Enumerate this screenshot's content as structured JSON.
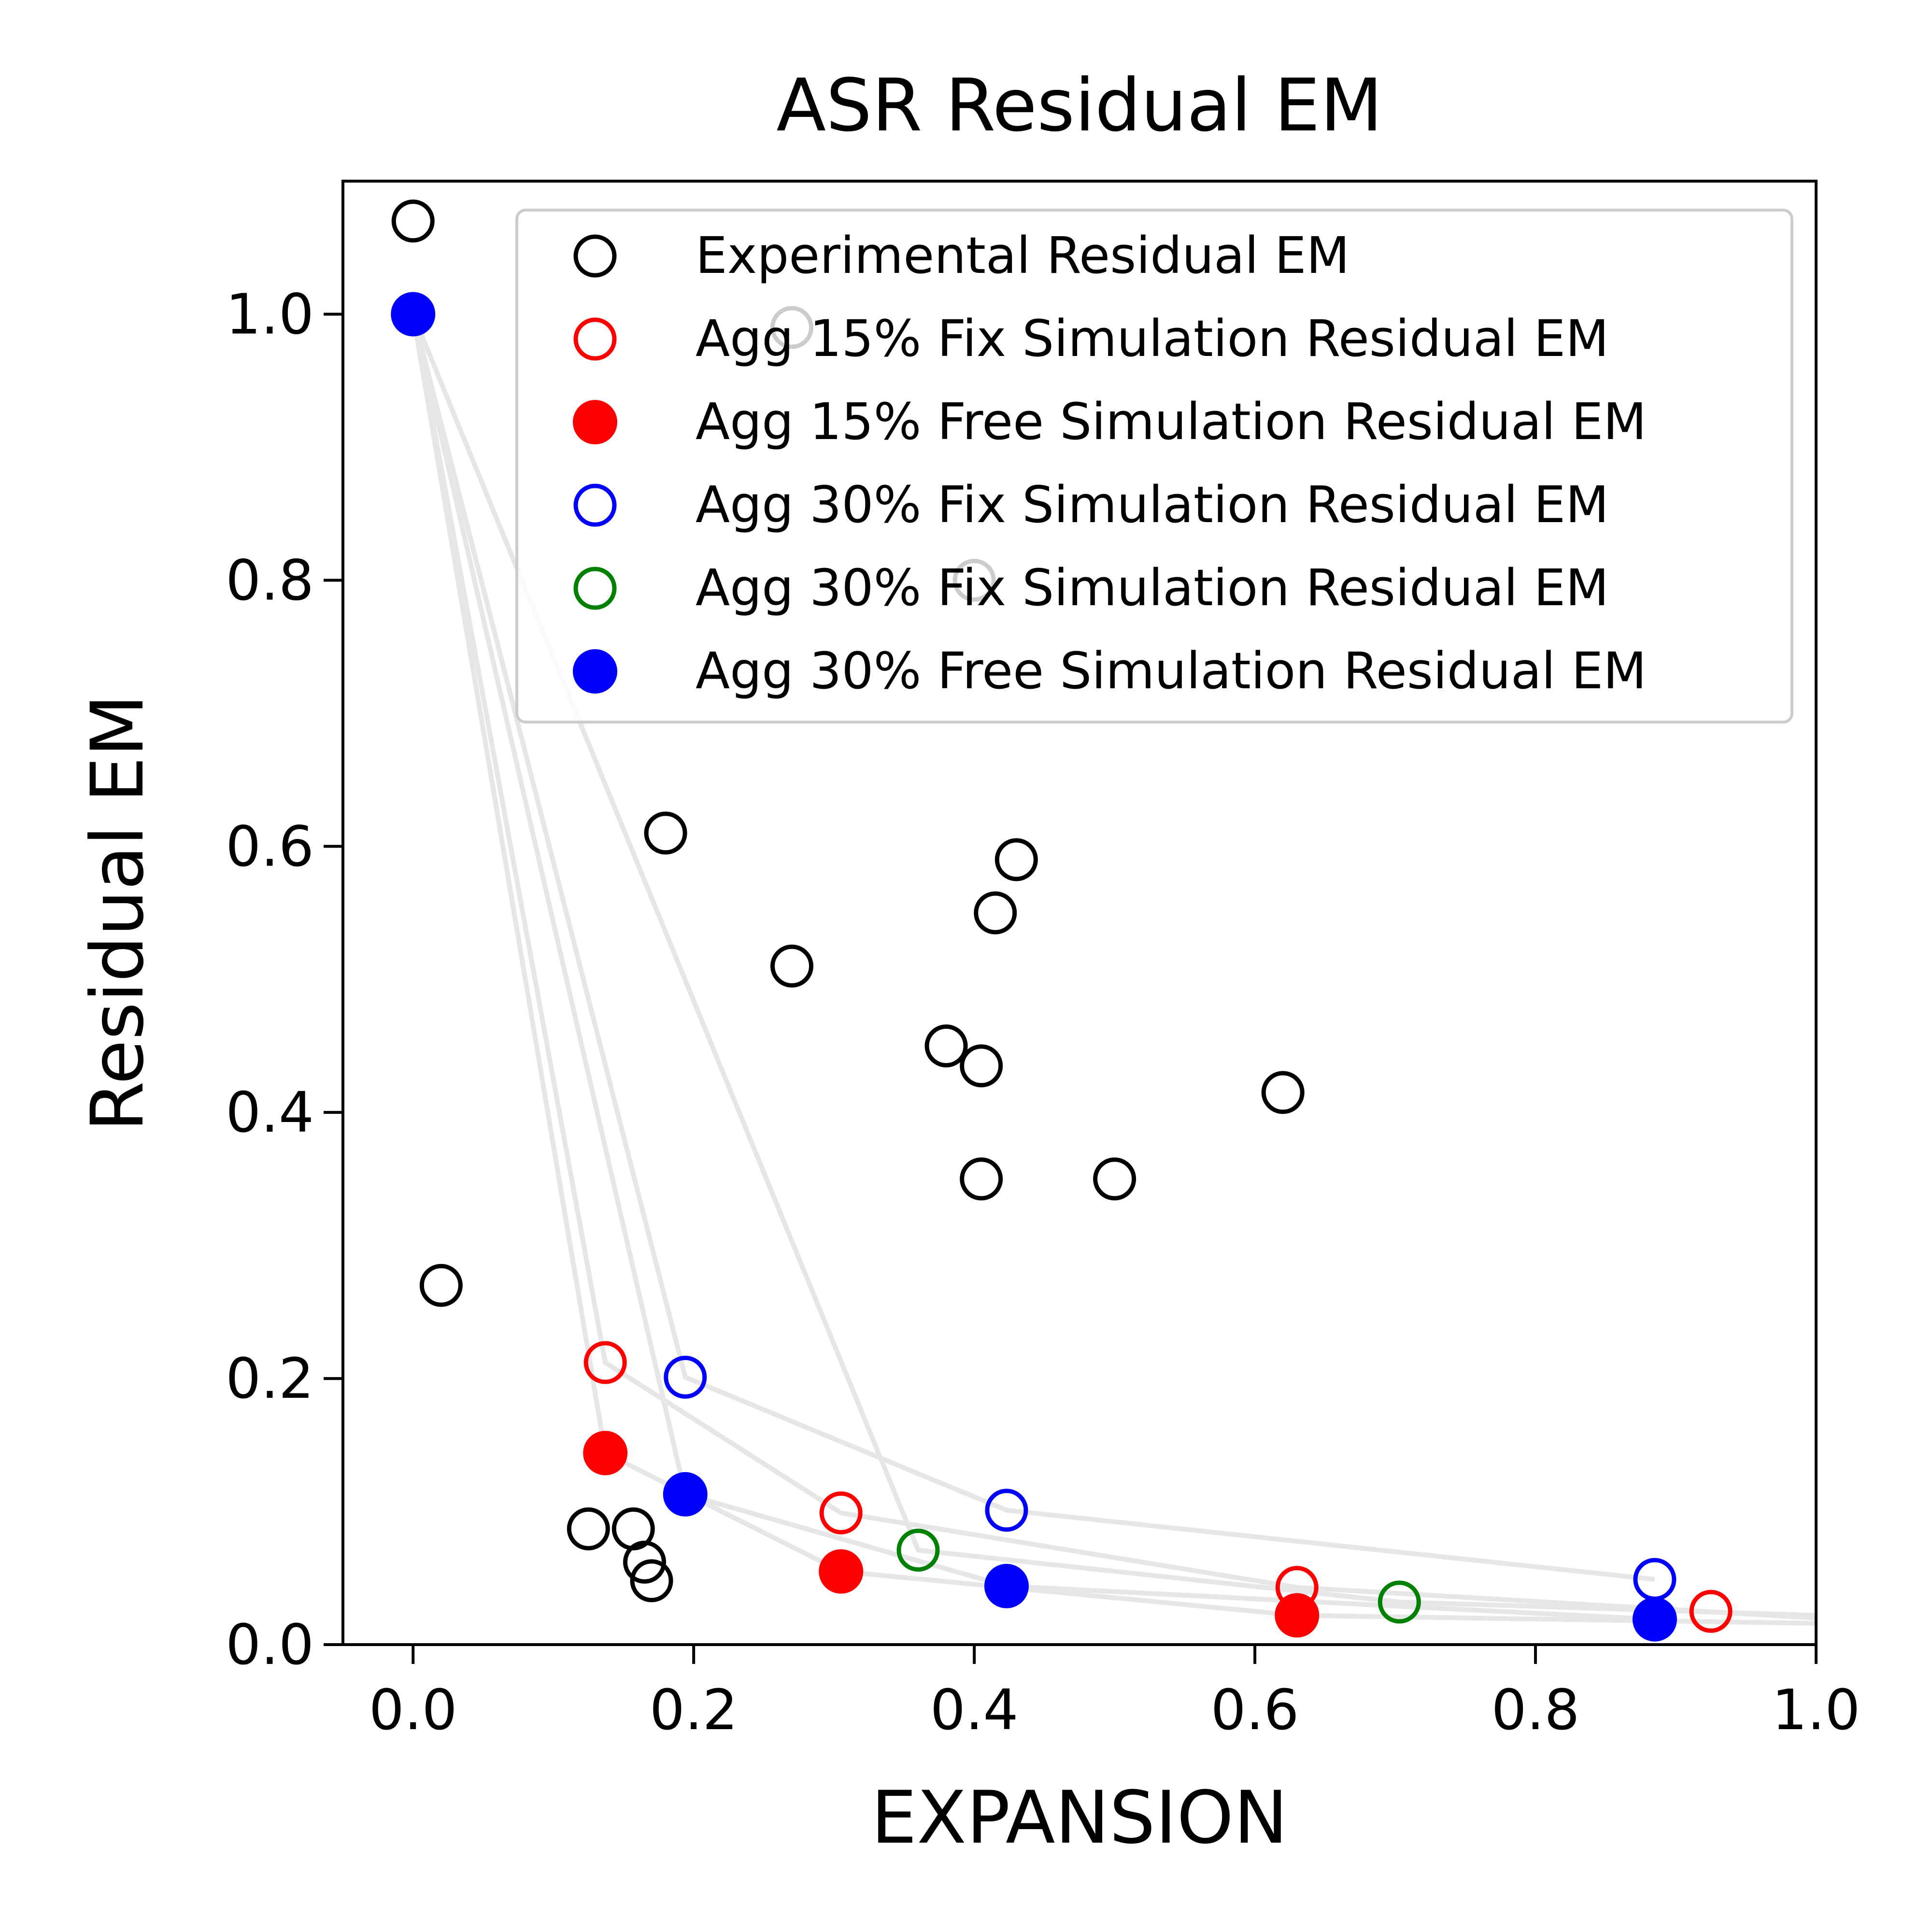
{
  "chart_data": {
    "type": "scatter",
    "title": "ASR Residual EM",
    "xlabel": "EXPANSION",
    "ylabel": "Residual EM",
    "xlim": [
      -0.05,
      1.0
    ],
    "ylim": [
      0.0,
      1.1
    ],
    "xticks": [
      0.0,
      0.2,
      0.4,
      0.6,
      0.8,
      1.0
    ],
    "xtick_labels": [
      "0.0",
      "0.2",
      "0.4",
      "0.6",
      "0.8",
      "1.0"
    ],
    "yticks": [
      0.0,
      0.2,
      0.4,
      0.6,
      0.8,
      1.0
    ],
    "ytick_labels": [
      "0.0",
      "0.2",
      "0.4",
      "0.6",
      "0.8",
      "1.0"
    ],
    "grid": false,
    "legend_position": "upper-right",
    "series": [
      {
        "name": "Experimental Residual EM",
        "color": "#000000",
        "marker": "open-circle",
        "points": [
          [
            0.0,
            1.07
          ],
          [
            0.27,
            0.99
          ],
          [
            0.4,
            0.8
          ],
          [
            0.18,
            0.61
          ],
          [
            0.43,
            0.59
          ],
          [
            0.415,
            0.55
          ],
          [
            0.27,
            0.51
          ],
          [
            0.38,
            0.45
          ],
          [
            0.405,
            0.435
          ],
          [
            0.62,
            0.415
          ],
          [
            0.405,
            0.35
          ],
          [
            0.5,
            0.35
          ],
          [
            0.02,
            0.27
          ],
          [
            0.125,
            0.087
          ],
          [
            0.157,
            0.087
          ],
          [
            0.165,
            0.062
          ],
          [
            0.17,
            0.048
          ]
        ]
      },
      {
        "name": "Agg 15% Fix Simulation Residual EM",
        "color": "#ff0000",
        "marker": "open-circle",
        "points": [
          [
            0.137,
            0.212
          ],
          [
            0.305,
            0.099
          ],
          [
            0.63,
            0.043
          ],
          [
            0.925,
            0.025
          ]
        ]
      },
      {
        "name": "Agg 15% Free Simulation Residual EM",
        "color": "#ff0000",
        "marker": "filled-circle",
        "points": [
          [
            0.137,
            0.144
          ],
          [
            0.305,
            0.055
          ],
          [
            0.63,
            0.022
          ]
        ]
      },
      {
        "name": "Agg 30% Fix Simulation Residual EM",
        "color": "#0000ff",
        "marker": "open-circle",
        "points": [
          [
            0.194,
            0.201
          ],
          [
            0.423,
            0.101
          ],
          [
            0.885,
            0.049
          ]
        ]
      },
      {
        "name": "Agg 30% Fix Simulation Residual EM",
        "color": "#008000",
        "marker": "open-circle",
        "points": [
          [
            0.36,
            0.071
          ],
          [
            0.703,
            0.032
          ]
        ]
      },
      {
        "name": "Agg 30% Free Simulation Residual EM",
        "color": "#0000ff",
        "marker": "filled-circle",
        "points": [
          [
            0.0,
            1.0
          ],
          [
            0.194,
            0.113
          ],
          [
            0.423,
            0.044
          ],
          [
            0.885,
            0.019
          ]
        ]
      }
    ],
    "fit_curves": {
      "color": "#e6e6e6",
      "curves": [
        [
          [
            0.0,
            1.0
          ],
          [
            0.137,
            0.212
          ],
          [
            0.305,
            0.099
          ],
          [
            0.63,
            0.043
          ],
          [
            1.0,
            0.02
          ]
        ],
        [
          [
            0.0,
            1.0
          ],
          [
            0.137,
            0.144
          ],
          [
            0.305,
            0.055
          ],
          [
            0.63,
            0.022
          ],
          [
            1.0,
            0.016
          ]
        ],
        [
          [
            0.0,
            1.0
          ],
          [
            0.194,
            0.201
          ],
          [
            0.423,
            0.101
          ],
          [
            0.885,
            0.049
          ]
        ],
        [
          [
            0.0,
            1.0
          ],
          [
            0.194,
            0.113
          ],
          [
            0.423,
            0.044
          ],
          [
            0.885,
            0.019
          ]
        ],
        [
          [
            0.0,
            1.0
          ],
          [
            0.36,
            0.071
          ],
          [
            0.703,
            0.032
          ],
          [
            1.0,
            0.022
          ]
        ]
      ]
    }
  }
}
